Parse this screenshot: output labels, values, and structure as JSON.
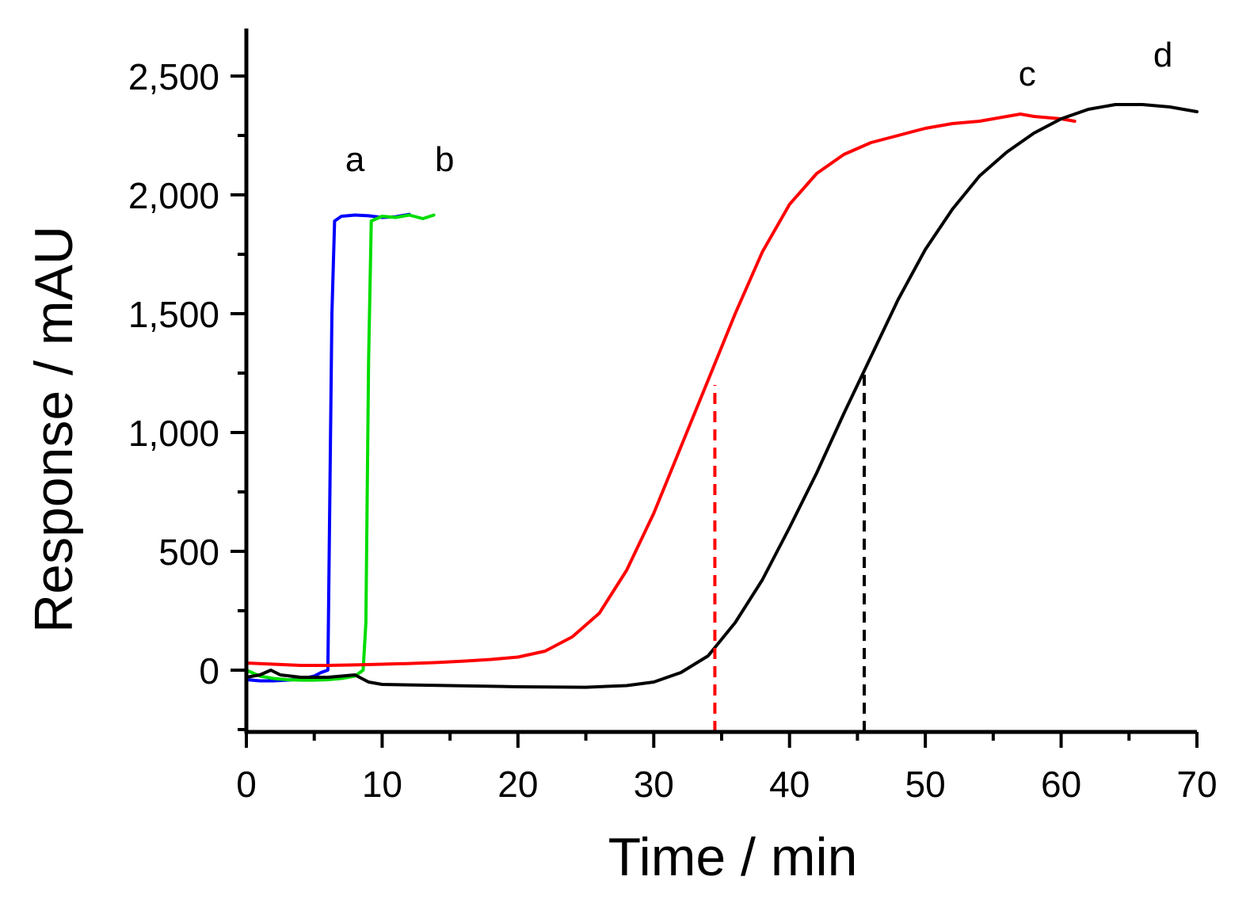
{
  "chart_data": {
    "type": "line",
    "title": "",
    "xlabel": "Time / min",
    "ylabel": "Response / mAU",
    "xlim": [
      0,
      70
    ],
    "ylim": [
      -260,
      2700
    ],
    "x_major_ticks": [
      0,
      10,
      20,
      30,
      40,
      50,
      60,
      70
    ],
    "x_minor_ticks": [
      5,
      15,
      25,
      35,
      45,
      55,
      65
    ],
    "x_tick_labels": [
      "0",
      "10",
      "20",
      "30",
      "40",
      "50",
      "60",
      "70"
    ],
    "y_major_ticks": [
      0,
      500,
      1000,
      1500,
      2000,
      2500
    ],
    "y_minor_ticks": [
      -250,
      250,
      750,
      1250,
      1750,
      2250
    ],
    "y_tick_labels": [
      "0",
      "500",
      "1,000",
      "1,500",
      "2,000",
      "2,500"
    ],
    "grid": false,
    "series": [
      {
        "name": "a",
        "color": "#0000ff",
        "x": [
          0,
          1,
          2,
          3,
          4,
          5,
          5.5,
          6.0,
          6.1,
          6.3,
          6.5,
          7,
          8,
          9,
          10,
          11,
          12
        ],
        "y": [
          -40,
          -45,
          -45,
          -42,
          -38,
          -25,
          -10,
          0,
          500,
          1500,
          1890,
          1910,
          1915,
          1912,
          1905,
          1908,
          1918
        ]
      },
      {
        "name": "b",
        "color": "#00dd00",
        "x": [
          0,
          1,
          2,
          3,
          4,
          5,
          6,
          7,
          8,
          8.6,
          8.8,
          9.0,
          9.2,
          10,
          11,
          12,
          13,
          13.8
        ],
        "y": [
          0,
          -25,
          -35,
          -40,
          -42,
          -42,
          -40,
          -35,
          -25,
          0,
          200,
          1300,
          1890,
          1910,
          1905,
          1915,
          1900,
          1915
        ]
      },
      {
        "name": "c",
        "color": "#ff0000",
        "x": [
          0,
          2,
          4,
          6,
          8,
          10,
          12,
          14,
          16,
          18,
          20,
          22,
          24,
          26,
          28,
          30,
          32,
          34,
          36,
          38,
          40,
          42,
          44,
          46,
          48,
          50,
          52,
          54,
          56,
          57,
          58,
          60,
          61
        ],
        "y": [
          30,
          25,
          20,
          20,
          22,
          25,
          28,
          32,
          38,
          45,
          55,
          80,
          140,
          240,
          420,
          660,
          940,
          1220,
          1500,
          1760,
          1960,
          2090,
          2170,
          2220,
          2250,
          2280,
          2300,
          2310,
          2330,
          2340,
          2330,
          2320,
          2310
        ]
      },
      {
        "name": "d",
        "color": "#000000",
        "x": [
          0,
          1,
          1.8,
          2.5,
          4,
          6,
          8,
          9,
          10,
          12,
          15,
          20,
          25,
          28,
          30,
          32,
          34,
          36,
          38,
          40,
          42,
          44,
          46,
          48,
          50,
          52,
          54,
          56,
          58,
          60,
          62,
          64,
          66,
          68,
          70
        ],
        "y": [
          -30,
          -20,
          0,
          -20,
          -30,
          -30,
          -20,
          -50,
          -60,
          -62,
          -65,
          -70,
          -72,
          -65,
          -50,
          -10,
          60,
          200,
          380,
          600,
          830,
          1080,
          1320,
          1560,
          1770,
          1940,
          2080,
          2180,
          2260,
          2320,
          2360,
          2380,
          2380,
          2370,
          2350
        ]
      }
    ],
    "reference_lines": [
      {
        "color": "#ff0000",
        "style": "dashed",
        "x": 34.5,
        "y_from": -260,
        "y_to": 1200
      },
      {
        "color": "#000000",
        "style": "dashed",
        "x": 45.5,
        "y_from": -260,
        "y_to": 1270
      }
    ],
    "annotations": [
      {
        "text": "a",
        "x": 8.0,
        "y": 2100
      },
      {
        "text": "b",
        "x": 14.6,
        "y": 2100
      },
      {
        "text": "c",
        "x": 57.5,
        "y": 2460
      },
      {
        "text": "d",
        "x": 67.5,
        "y": 2540
      }
    ]
  }
}
